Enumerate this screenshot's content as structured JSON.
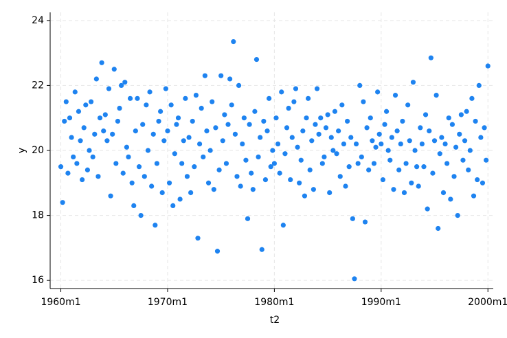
{
  "chart_data": {
    "type": "scatter",
    "xlabel": "t2",
    "ylabel": "y",
    "xlim": [
      -12,
      486
    ],
    "ylim": [
      15.75,
      24.25
    ],
    "xticks": [
      {
        "value": 0,
        "label": "1960m1"
      },
      {
        "value": 120,
        "label": "1970m1"
      },
      {
        "value": 240,
        "label": "1980m1"
      },
      {
        "value": 360,
        "label": "1990m1"
      },
      {
        "value": 480,
        "label": "2000m1"
      }
    ],
    "yticks": [
      16,
      18,
      20,
      22,
      24
    ],
    "grid": true,
    "color": "#1e83f0",
    "x": [
      0,
      2,
      4,
      6,
      8,
      10,
      12,
      14,
      16,
      18,
      20,
      22,
      24,
      26,
      28,
      30,
      32,
      34,
      36,
      38,
      40,
      42,
      44,
      46,
      48,
      50,
      52,
      54,
      56,
      58,
      60,
      62,
      64,
      66,
      68,
      70,
      72,
      74,
      76,
      78,
      80,
      82,
      84,
      86,
      88,
      90,
      92,
      94,
      96,
      98,
      100,
      102,
      104,
      106,
      108,
      110,
      112,
      114,
      116,
      118,
      120,
      122,
      124,
      126,
      128,
      130,
      132,
      134,
      136,
      138,
      140,
      142,
      144,
      146,
      148,
      150,
      152,
      154,
      156,
      158,
      160,
      162,
      164,
      166,
      168,
      170,
      172,
      174,
      176,
      178,
      180,
      182,
      184,
      186,
      188,
      190,
      192,
      194,
      196,
      198,
      200,
      202,
      204,
      206,
      208,
      210,
      212,
      214,
      216,
      218,
      220,
      222,
      224,
      226,
      228,
      230,
      232,
      234,
      236,
      238,
      240,
      242,
      244,
      246,
      248,
      250,
      252,
      254,
      256,
      258,
      260,
      262,
      264,
      266,
      268,
      270,
      272,
      274,
      276,
      278,
      280,
      282,
      284,
      286,
      288,
      290,
      292,
      294,
      296,
      298,
      300,
      302,
      304,
      306,
      308,
      310,
      312,
      314,
      316,
      318,
      320,
      322,
      324,
      326,
      328,
      330,
      332,
      334,
      336,
      338,
      340,
      342,
      344,
      346,
      348,
      350,
      352,
      354,
      356,
      358,
      360,
      362,
      364,
      366,
      368,
      370,
      372,
      374,
      376,
      378,
      380,
      382,
      384,
      386,
      388,
      390,
      392,
      394,
      396,
      398,
      400,
      402,
      404,
      406,
      408,
      410,
      412,
      414,
      416,
      418,
      420,
      422,
      424,
      426,
      428,
      430,
      432,
      434,
      436,
      438,
      440,
      442,
      444,
      446,
      448,
      450,
      452,
      454,
      456,
      458,
      460,
      462,
      464,
      466,
      468,
      470,
      472,
      474,
      476,
      478,
      480
    ],
    "y": [
      19.5,
      18.4,
      20.9,
      21.5,
      19.3,
      21.0,
      20.4,
      19.8,
      21.8,
      19.6,
      21.2,
      20.3,
      19.1,
      20.7,
      21.4,
      19.4,
      20.0,
      21.5,
      19.8,
      20.5,
      22.2,
      19.2,
      21.0,
      22.7,
      20.6,
      21.1,
      20.3,
      21.9,
      18.6,
      20.5,
      22.5,
      19.6,
      20.9,
      21.3,
      22.0,
      19.3,
      22.1,
      20.1,
      19.8,
      21.6,
      19.0,
      18.3,
      20.6,
      21.6,
      19.5,
      18.0,
      20.8,
      19.2,
      21.4,
      20.0,
      21.8,
      18.9,
      20.5,
      17.7,
      19.6,
      20.9,
      21.2,
      18.7,
      20.3,
      21.9,
      20.6,
      19.0,
      21.4,
      18.3,
      19.9,
      20.8,
      21.0,
      18.5,
      19.6,
      20.3,
      21.6,
      19.2,
      20.4,
      18.7,
      20.9,
      19.5,
      21.7,
      17.3,
      20.2,
      21.3,
      19.8,
      22.3,
      20.6,
      19.0,
      20.0,
      21.5,
      18.8,
      20.7,
      16.9,
      19.4,
      22.3,
      20.3,
      21.1,
      19.6,
      20.8,
      22.2,
      21.4,
      23.35,
      20.5,
      19.2,
      22.0,
      18.9,
      20.2,
      21.0,
      19.7,
      17.9,
      20.8,
      19.3,
      18.8,
      21.2,
      22.8,
      19.8,
      20.4,
      16.95,
      20.9,
      19.1,
      20.6,
      21.6,
      19.5,
      20.0,
      19.6,
      21.0,
      20.2,
      19.3,
      21.8,
      17.7,
      19.9,
      20.7,
      21.3,
      19.1,
      20.4,
      21.5,
      21.9,
      20.1,
      19.0,
      19.7,
      20.6,
      18.6,
      21.0,
      21.6,
      19.4,
      20.3,
      18.8,
      20.8,
      21.9,
      20.5,
      21.0,
      19.6,
      19.8,
      20.7,
      21.1,
      18.7,
      20.4,
      20.0,
      21.2,
      19.9,
      20.6,
      19.2,
      21.4,
      20.2,
      18.9,
      20.9,
      19.5,
      20.4,
      17.9,
      16.05,
      20.2,
      19.6,
      22.0,
      19.8,
      21.5,
      17.8,
      20.7,
      19.4,
      21.0,
      20.3,
      19.6,
      20.1,
      21.8,
      20.5,
      20.2,
      19.1,
      20.8,
      21.2,
      20.0,
      19.7,
      20.4,
      18.8,
      21.7,
      20.6,
      19.4,
      20.2,
      20.9,
      18.7,
      19.6,
      21.4,
      20.3,
      19.0,
      22.1,
      20.0,
      19.5,
      18.9,
      20.7,
      20.2,
      19.5,
      21.1,
      18.2,
      20.6,
      22.85,
      19.3,
      20.3,
      21.7,
      17.6,
      19.9,
      20.4,
      18.7,
      20.2,
      19.6,
      21.0,
      18.5,
      20.8,
      19.2,
      20.1,
      18.0,
      20.5,
      21.1,
      19.7,
      20.3,
      21.2,
      19.4,
      20.0,
      21.6,
      18.6,
      20.9,
      19.1,
      22.0,
      20.4,
      19.0,
      20.7,
      19.7,
      22.6
    ]
  }
}
